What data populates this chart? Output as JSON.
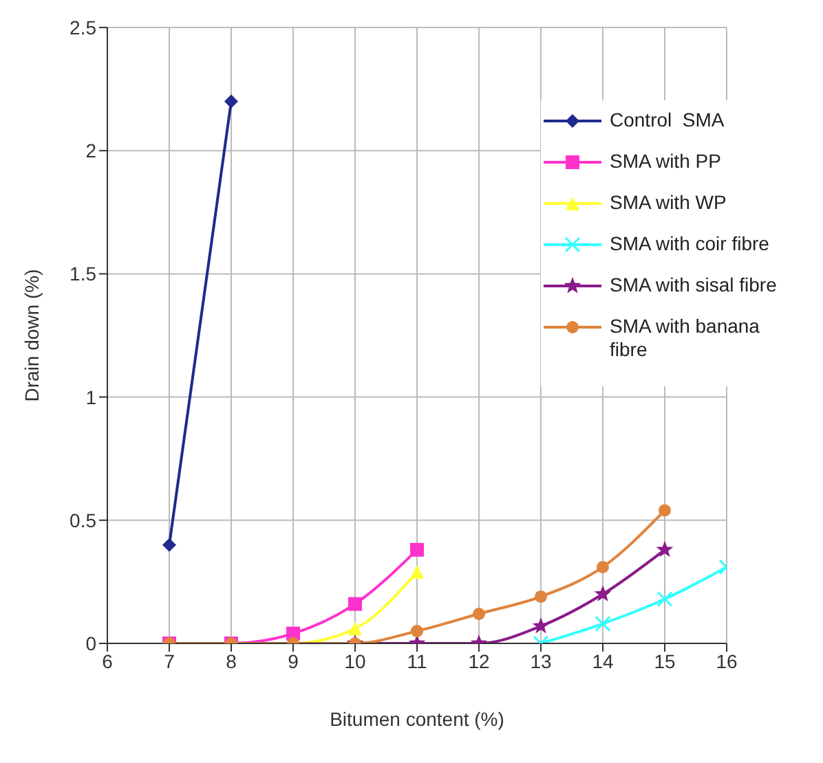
{
  "chart_data": {
    "type": "line",
    "xlabel": "Bitumen content (%)",
    "ylabel": "Drain down (%)",
    "xlim": [
      6,
      16
    ],
    "xticks": [
      6,
      7,
      8,
      9,
      10,
      11,
      12,
      13,
      14,
      15,
      16
    ],
    "ylim": [
      0,
      2.5
    ],
    "yticks": [
      0,
      0.5,
      1,
      1.5,
      2,
      2.5
    ],
    "grid": true,
    "legend": "top right",
    "series": [
      {
        "name": "Control  SMA",
        "color": "#1f2a8c",
        "marker": "diamond",
        "x": [
          7,
          8
        ],
        "values": [
          0.4,
          2.2
        ]
      },
      {
        "name": "SMA with PP",
        "color": "#ff33cc",
        "marker": "square",
        "x": [
          7,
          8,
          9,
          10,
          11
        ],
        "values": [
          0,
          0,
          0.04,
          0.16,
          0.38
        ]
      },
      {
        "name": "SMA with WP",
        "color": "#ffff33",
        "marker": "triangle",
        "x": [
          7,
          8,
          9,
          10,
          11
        ],
        "values": [
          0,
          0,
          0,
          0.06,
          0.29
        ]
      },
      {
        "name": "SMA with coir fibre",
        "color": "#33ffff",
        "marker": "cross",
        "x": [
          13,
          14,
          15,
          16
        ],
        "values": [
          0,
          0.08,
          0.18,
          0.31
        ]
      },
      {
        "name": "SMA with sisal fibre",
        "color": "#8b1a8b",
        "marker": "star",
        "x": [
          10,
          11,
          12,
          13,
          14,
          15
        ],
        "values": [
          0,
          0,
          0,
          0.07,
          0.2,
          0.38
        ]
      },
      {
        "name": "SMA with banana fibre",
        "color": "#e0843c",
        "marker": "circle",
        "x": [
          7,
          8,
          9,
          10,
          11,
          12,
          13,
          14,
          15
        ],
        "values": [
          0,
          0,
          0,
          0,
          0.05,
          0.12,
          0.19,
          0.31,
          0.54
        ]
      }
    ]
  }
}
